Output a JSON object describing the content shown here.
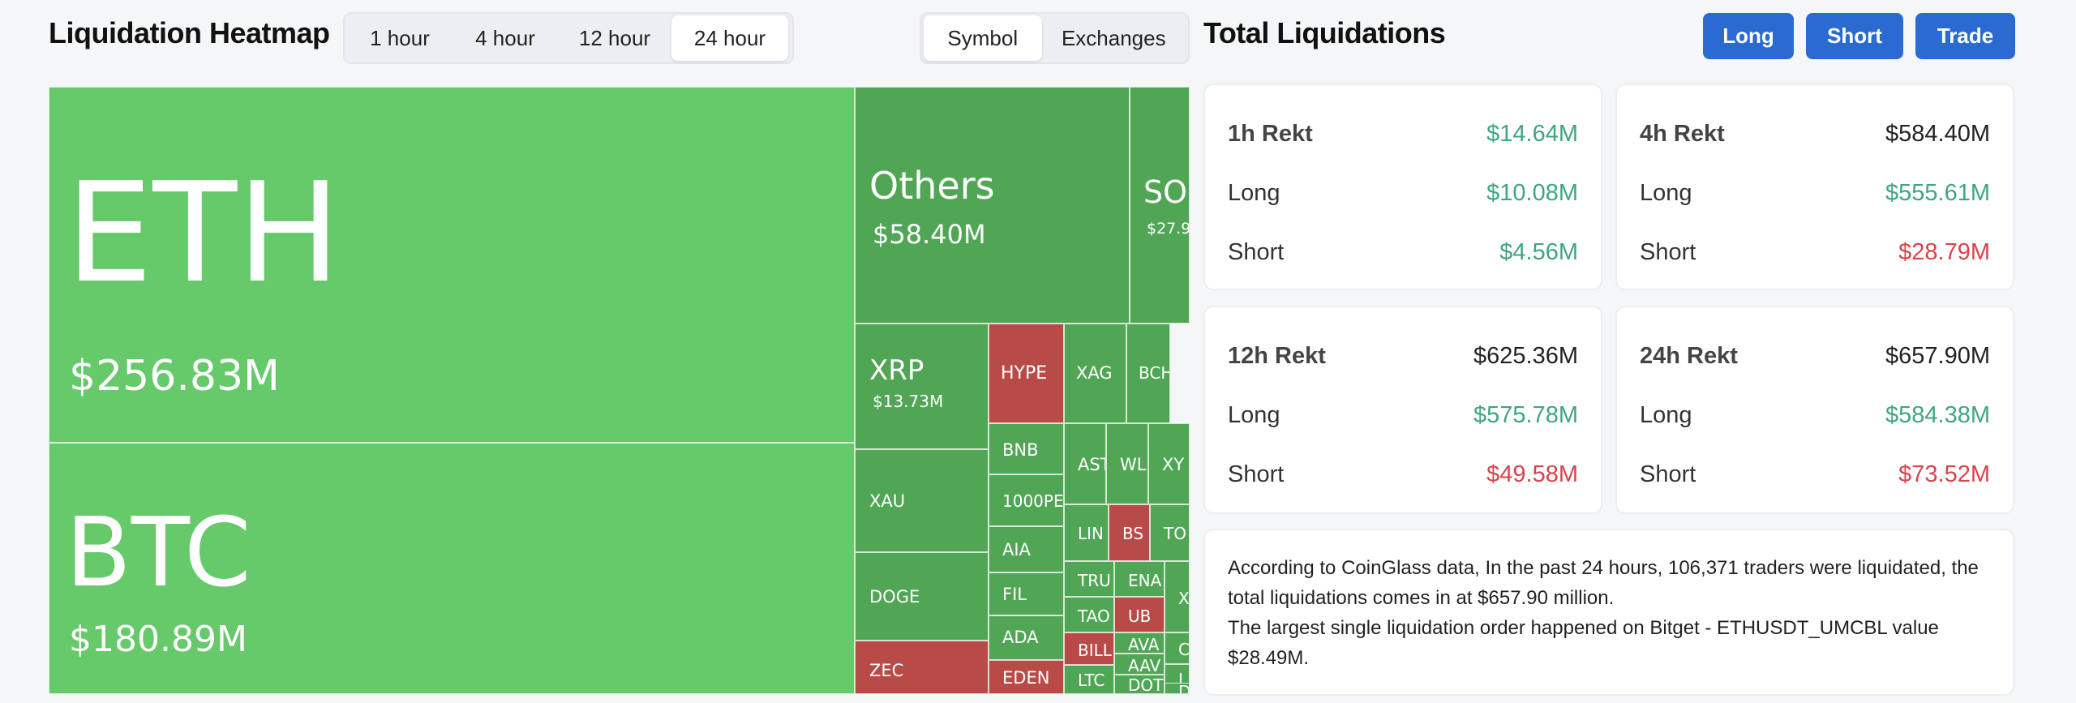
{
  "heatmap": {
    "title": "Liquidation Heatmap",
    "time_tabs": [
      {
        "label": "1 hour",
        "active": false
      },
      {
        "label": "4 hour",
        "active": false
      },
      {
        "label": "12 hour",
        "active": false
      },
      {
        "label": "24 hour",
        "active": true
      }
    ],
    "view_tabs": [
      {
        "label": "Symbol",
        "active": true
      },
      {
        "label": "Exchanges",
        "active": false
      }
    ],
    "colors": {
      "long": "#66c96a",
      "long_dark": "#51a656",
      "short": "#b84a48"
    },
    "tiles": [
      {
        "symbol": "ETH",
        "value": "$256.83M"
      },
      {
        "symbol": "BTC",
        "value": "$180.89M"
      },
      {
        "symbol": "Others",
        "value": "$58.40M"
      },
      {
        "symbol": "SOL",
        "value": "$27.9"
      },
      {
        "symbol": "XRP",
        "value": "$13.73M"
      },
      {
        "symbol": "HYPE",
        "value": ""
      },
      {
        "symbol": "XAG",
        "value": ""
      },
      {
        "symbol": "BCH",
        "value": ""
      },
      {
        "symbol": "XAU",
        "value": ""
      },
      {
        "symbol": "DOGE",
        "value": ""
      },
      {
        "symbol": "ZEC",
        "value": ""
      },
      {
        "symbol": "BNB",
        "value": ""
      },
      {
        "symbol": "1000PE",
        "value": ""
      },
      {
        "symbol": "AIA",
        "value": ""
      },
      {
        "symbol": "FIL",
        "value": ""
      },
      {
        "symbol": "ADA",
        "value": ""
      },
      {
        "symbol": "EDEN",
        "value": ""
      },
      {
        "symbol": "AST",
        "value": ""
      },
      {
        "symbol": "WL",
        "value": ""
      },
      {
        "symbol": "XY",
        "value": ""
      },
      {
        "symbol": "LIN",
        "value": ""
      },
      {
        "symbol": "BS",
        "value": ""
      },
      {
        "symbol": "TO",
        "value": ""
      },
      {
        "symbol": "TRU",
        "value": ""
      },
      {
        "symbol": "ENA",
        "value": ""
      },
      {
        "symbol": "X",
        "value": ""
      },
      {
        "symbol": "UB",
        "value": ""
      },
      {
        "symbol": "TAO",
        "value": ""
      },
      {
        "symbol": "AVA",
        "value": ""
      },
      {
        "symbol": "C",
        "value": ""
      },
      {
        "symbol": "BILL",
        "value": ""
      },
      {
        "symbol": "AAV",
        "value": ""
      },
      {
        "symbol": "I",
        "value": ""
      },
      {
        "symbol": "LTC",
        "value": ""
      },
      {
        "symbol": "DOT",
        "value": ""
      },
      {
        "symbol": "D",
        "value": ""
      }
    ]
  },
  "totals": {
    "title": "Total Liquidations",
    "buttons": {
      "long": "Long",
      "short": "Short",
      "trade": "Trade"
    },
    "long_label": "Long",
    "short_label": "Short",
    "cards": [
      {
        "title": "1h Rekt",
        "total": "$14.64M",
        "long": "$10.08M",
        "short": "$4.56M"
      },
      {
        "title": "4h Rekt",
        "total": "$584.40M",
        "long": "$555.61M",
        "short": "$28.79M"
      },
      {
        "title": "12h Rekt",
        "total": "$625.36M",
        "long": "$575.78M",
        "short": "$49.58M"
      },
      {
        "title": "24h Rekt",
        "total": "$657.90M",
        "long": "$584.38M",
        "short": "$73.52M"
      }
    ],
    "info_line1": "According to CoinGlass data, In the past 24 hours, 106,371 traders were liquidated, the total liquidations comes in at $657.90 million.",
    "info_line2": "The largest single liquidation order happened on Bitget - ETHUSDT_UMCBL value $28.49M."
  }
}
